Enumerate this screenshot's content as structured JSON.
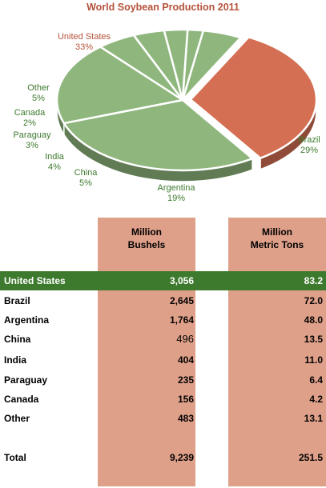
{
  "chart_data": {
    "type": "pie",
    "title": "World Soybean Production 2011",
    "slices": [
      {
        "label": "United States",
        "pct": "33%",
        "value": 33,
        "color": "#d46f53"
      },
      {
        "label": "Brazil",
        "pct": "29%",
        "value": 29,
        "color": "#8fb77d"
      },
      {
        "label": "Argentina",
        "pct": "19%",
        "value": 19,
        "color": "#8fb77d"
      },
      {
        "label": "China",
        "pct": "5%",
        "value": 5,
        "color": "#8fb77d"
      },
      {
        "label": "India",
        "pct": "4%",
        "value": 4,
        "color": "#8fb77d"
      },
      {
        "label": "Paraguay",
        "pct": "3%",
        "value": 3,
        "color": "#8fb77d"
      },
      {
        "label": "Canada",
        "pct": "2%",
        "value": 2,
        "color": "#8fb77d"
      },
      {
        "label": "Other",
        "pct": "5%",
        "value": 5,
        "color": "#8fb77d"
      }
    ]
  },
  "table": {
    "col1_header": [
      "Million",
      "Bushels"
    ],
    "col2_header": [
      "Million",
      "Metric Tons"
    ],
    "rows": [
      {
        "name": "United States",
        "bushels": "3,056",
        "tons": "83.2",
        "highlight": true
      },
      {
        "name": "Brazil",
        "bushels": "2,645",
        "tons": "72.0"
      },
      {
        "name": "Argentina",
        "bushels": "1,764",
        "tons": "48.0"
      },
      {
        "name": "China",
        "bushels": "496",
        "tons": "13.5"
      },
      {
        "name": "India",
        "bushels": "404",
        "tons": "11.0"
      },
      {
        "name": "Paraguay",
        "bushels": "235",
        "tons": "6.4"
      },
      {
        "name": "Canada",
        "bushels": "156",
        "tons": "4.2"
      },
      {
        "name": "Other",
        "bushels": "483",
        "tons": "13.1"
      },
      {
        "name": "Total",
        "bushels": "9,239",
        "tons": "251.5"
      }
    ]
  }
}
